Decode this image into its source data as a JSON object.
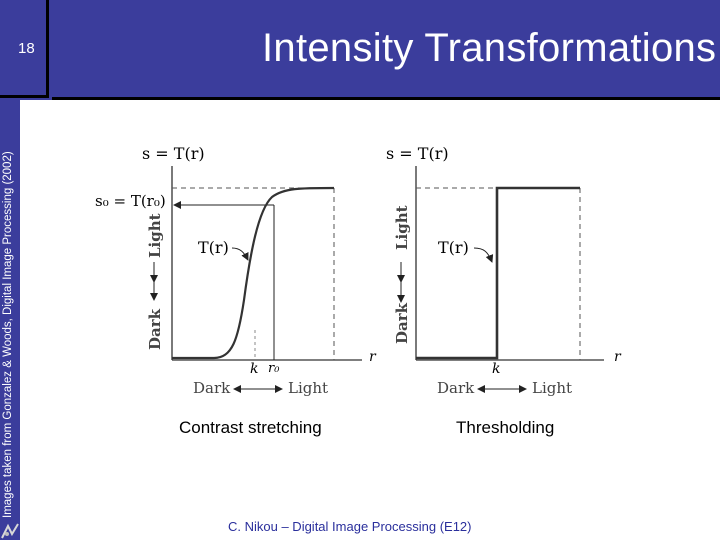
{
  "slide": {
    "number": "18",
    "title": "Intensity Transformations",
    "side_credit": "Images taken from Gonzalez & Woods, Digital Image Processing (2002)",
    "footer": "C. Nikou – Digital Image Processing (E12)",
    "colors": {
      "header": "#3b3d9c",
      "footer_text": "#2a2f9c"
    }
  },
  "figures": {
    "left": {
      "caption": "Contrast stretching",
      "equation": "s = T(r)",
      "s0_label": "s₀ = T(r₀)",
      "curve_label": "T(r)",
      "y_light": "Light",
      "y_dark": "Dark",
      "x_dark": "Dark",
      "x_light": "Light",
      "axis_r": "r",
      "tick_k": "k",
      "tick_r0": "r₀"
    },
    "right": {
      "caption": "Thresholding",
      "equation": "s = T(r)",
      "curve_label": "T(r)",
      "y_light": "Light",
      "y_dark": "Dark",
      "x_dark": "Dark",
      "x_light": "Light",
      "axis_r": "r",
      "tick_k": "k"
    }
  }
}
